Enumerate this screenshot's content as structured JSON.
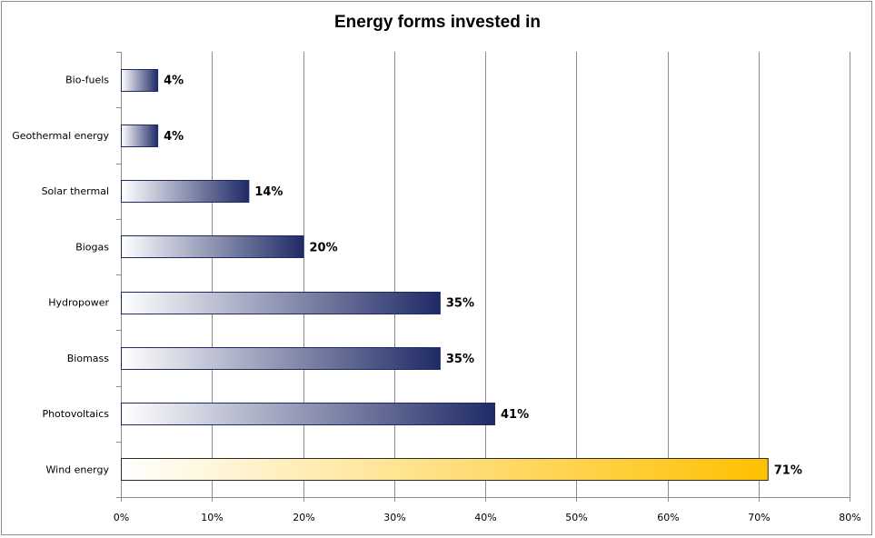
{
  "chart_data": {
    "type": "bar",
    "orientation": "horizontal",
    "title": "Energy forms invested in",
    "categories": [
      "Bio-fuels",
      "Geothermal energy",
      "Solar thermal",
      "Biogas",
      "Hydropower",
      "Biomass",
      "Photovoltaics",
      "Wind energy"
    ],
    "values": [
      4,
      4,
      14,
      20,
      35,
      35,
      41,
      71
    ],
    "value_labels": [
      "4%",
      "4%",
      "14%",
      "20%",
      "35%",
      "35%",
      "41%",
      "71%"
    ],
    "xlim": [
      0,
      80
    ],
    "xticks": [
      0,
      10,
      20,
      30,
      40,
      50,
      60,
      70,
      80
    ],
    "xtick_labels": [
      "0%",
      "10%",
      "20%",
      "30%",
      "40%",
      "50%",
      "60%",
      "70%",
      "80%"
    ],
    "xlabel": "",
    "ylabel": "",
    "grid": "vertical",
    "legend": "none",
    "colors": {
      "default_bar_dark": "#1f2a66",
      "highlight_bar_dark": "#ffc000",
      "bar_light": "#ffffff",
      "gridline": "#8c8c8c",
      "frame": "#8c8c8c"
    },
    "highlight_category": "Wind energy"
  }
}
